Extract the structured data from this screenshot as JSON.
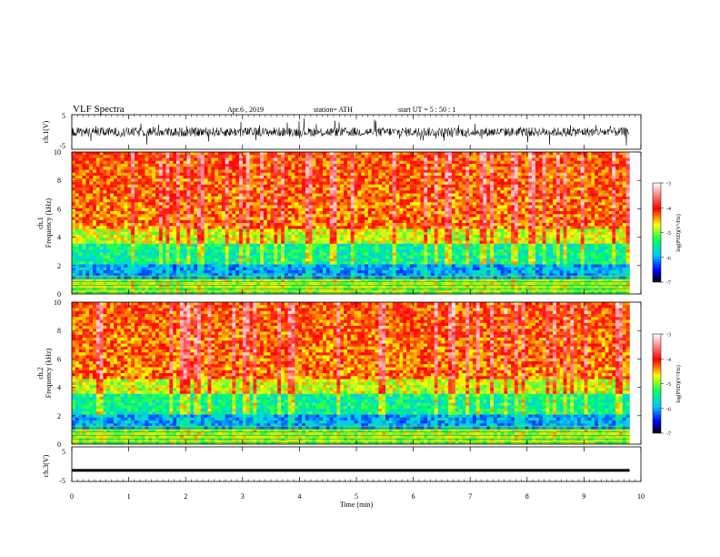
{
  "header": {
    "title": "VLF  Spectra",
    "date": "Apr.6  , 2019",
    "station": "station= ATH",
    "start_ut": "start  UT  =    5  : 50 : 1"
  },
  "chart_data": [
    {
      "type": "line",
      "name": "ch1-waveform",
      "ylabel": "ch.1(V)",
      "ylim": [
        -5,
        5
      ],
      "yticks": [
        "5",
        "-5"
      ],
      "xlim": [
        0,
        10
      ],
      "data_end_min": 9.8
    },
    {
      "type": "heatmap",
      "name": "ch1-spectrogram",
      "ylabel_line1": "ch.1",
      "ylabel_line2": "Frequency  (kHz)",
      "ylim": [
        0,
        10
      ],
      "yticks": [
        "0",
        "2",
        "4",
        "6",
        "8",
        "10"
      ],
      "xlim": [
        0,
        10
      ],
      "data_end_min": 9.8,
      "colorbar": {
        "label": "log(PSD)(V²/Hz)",
        "range": [
          -7,
          -3
        ],
        "ticks": [
          "-3",
          "-4",
          "-5",
          "-6",
          "-7"
        ]
      }
    },
    {
      "type": "heatmap",
      "name": "ch2-spectrogram",
      "ylabel_line1": "ch.2",
      "ylabel_line2": "Frequency  (kHz)",
      "ylim": [
        0,
        10
      ],
      "yticks": [
        "0",
        "2",
        "4",
        "6",
        "8",
        "10"
      ],
      "xlim": [
        0,
        10
      ],
      "data_end_min": 9.8,
      "colorbar": {
        "label": "log(PSD)(V²/Hz)",
        "range": [
          -7,
          -3
        ],
        "ticks": [
          "-3",
          "-4",
          "-5",
          "-6",
          "-7"
        ]
      }
    },
    {
      "type": "line",
      "name": "ch3-waveform",
      "ylabel": "ch.3(V)",
      "ylim": [
        -5,
        5
      ],
      "yticks": [
        "5",
        "-5"
      ],
      "xlim": [
        0,
        10
      ],
      "data_end_min": 9.8,
      "level_v": -1.8
    }
  ],
  "xaxis": {
    "label": "Time  (min)",
    "ticks": [
      "0",
      "1",
      "2",
      "3",
      "4",
      "5",
      "6",
      "7",
      "8",
      "9",
      "10"
    ]
  }
}
